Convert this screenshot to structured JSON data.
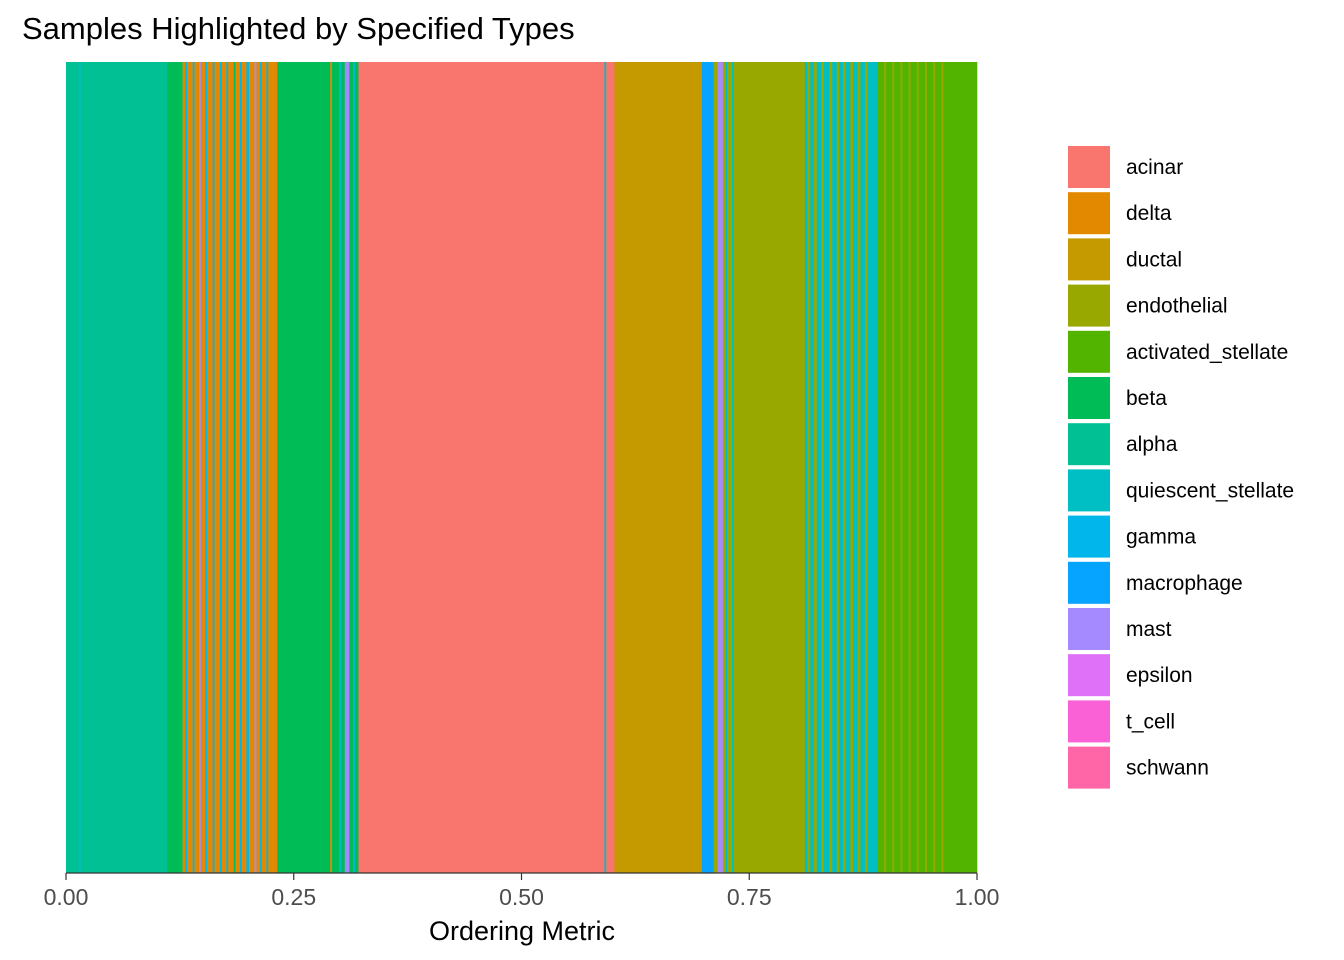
{
  "chart_data": {
    "type": "heatmap",
    "title": "Samples Highlighted by Specified Types",
    "xlabel": "Ordering Metric",
    "ylabel": "",
    "xlim": [
      0,
      1
    ],
    "x_ticks": [
      0,
      0.25,
      0.5,
      0.75,
      1
    ],
    "x_tick_labels": [
      "0.00",
      "0.25",
      "0.50",
      "0.75",
      "1.00"
    ],
    "legend_position": "right",
    "grid": false,
    "series": [
      {
        "name": "acinar",
        "color": "#F8766D"
      },
      {
        "name": "delta",
        "color": "#E38900"
      },
      {
        "name": "ductal",
        "color": "#C49A00"
      },
      {
        "name": "endothelial",
        "color": "#99A800"
      },
      {
        "name": "activated_stellate",
        "color": "#53B400"
      },
      {
        "name": "beta",
        "color": "#00BC56"
      },
      {
        "name": "alpha",
        "color": "#00C094"
      },
      {
        "name": "quiescent_stellate",
        "color": "#00BFC4"
      },
      {
        "name": "gamma",
        "color": "#00B6EB"
      },
      {
        "name": "macrophage",
        "color": "#06A4FF"
      },
      {
        "name": "mast",
        "color": "#A58AFF"
      },
      {
        "name": "epsilon",
        "color": "#DF70F8"
      },
      {
        "name": "t_cell",
        "color": "#FB61D7"
      },
      {
        "name": "schwann",
        "color": "#FF66A8"
      }
    ],
    "segments": [
      {
        "start": 0.0,
        "end": 0.014,
        "type": "alpha"
      },
      {
        "start": 0.014,
        "end": 0.016,
        "type": "quiescent_stellate"
      },
      {
        "start": 0.016,
        "end": 0.111,
        "type": "alpha"
      },
      {
        "start": 0.111,
        "end": 0.128,
        "type": "beta"
      },
      {
        "start": 0.128,
        "end": 0.131,
        "type": "delta"
      },
      {
        "start": 0.131,
        "end": 0.133,
        "type": "gamma"
      },
      {
        "start": 0.133,
        "end": 0.139,
        "type": "delta"
      },
      {
        "start": 0.139,
        "end": 0.141,
        "type": "gamma"
      },
      {
        "start": 0.141,
        "end": 0.146,
        "type": "delta"
      },
      {
        "start": 0.146,
        "end": 0.148,
        "type": "mast"
      },
      {
        "start": 0.148,
        "end": 0.153,
        "type": "delta"
      },
      {
        "start": 0.153,
        "end": 0.155,
        "type": "gamma"
      },
      {
        "start": 0.155,
        "end": 0.161,
        "type": "delta"
      },
      {
        "start": 0.161,
        "end": 0.163,
        "type": "gamma"
      },
      {
        "start": 0.163,
        "end": 0.169,
        "type": "delta"
      },
      {
        "start": 0.169,
        "end": 0.171,
        "type": "gamma"
      },
      {
        "start": 0.171,
        "end": 0.176,
        "type": "delta"
      },
      {
        "start": 0.176,
        "end": 0.178,
        "type": "gamma"
      },
      {
        "start": 0.178,
        "end": 0.184,
        "type": "delta"
      },
      {
        "start": 0.184,
        "end": 0.186,
        "type": "beta"
      },
      {
        "start": 0.186,
        "end": 0.191,
        "type": "delta"
      },
      {
        "start": 0.191,
        "end": 0.193,
        "type": "gamma"
      },
      {
        "start": 0.193,
        "end": 0.198,
        "type": "delta"
      },
      {
        "start": 0.198,
        "end": 0.201,
        "type": "gamma"
      },
      {
        "start": 0.201,
        "end": 0.207,
        "type": "delta"
      },
      {
        "start": 0.207,
        "end": 0.209,
        "type": "mast"
      },
      {
        "start": 0.209,
        "end": 0.213,
        "type": "delta"
      },
      {
        "start": 0.213,
        "end": 0.215,
        "type": "gamma"
      },
      {
        "start": 0.215,
        "end": 0.22,
        "type": "delta"
      },
      {
        "start": 0.22,
        "end": 0.222,
        "type": "gamma"
      },
      {
        "start": 0.222,
        "end": 0.232,
        "type": "delta"
      },
      {
        "start": 0.232,
        "end": 0.29,
        "type": "beta"
      },
      {
        "start": 0.29,
        "end": 0.292,
        "type": "delta"
      },
      {
        "start": 0.292,
        "end": 0.3,
        "type": "beta"
      },
      {
        "start": 0.3,
        "end": 0.302,
        "type": "quiescent_stellate"
      },
      {
        "start": 0.302,
        "end": 0.306,
        "type": "beta"
      },
      {
        "start": 0.306,
        "end": 0.311,
        "type": "mast"
      },
      {
        "start": 0.311,
        "end": 0.315,
        "type": "beta"
      },
      {
        "start": 0.315,
        "end": 0.317,
        "type": "gamma"
      },
      {
        "start": 0.317,
        "end": 0.321,
        "type": "beta"
      },
      {
        "start": 0.321,
        "end": 0.591,
        "type": "acinar"
      },
      {
        "start": 0.591,
        "end": 0.593,
        "type": "quiescent_stellate"
      },
      {
        "start": 0.593,
        "end": 0.602,
        "type": "acinar"
      },
      {
        "start": 0.602,
        "end": 0.698,
        "type": "ductal"
      },
      {
        "start": 0.698,
        "end": 0.711,
        "type": "macrophage"
      },
      {
        "start": 0.711,
        "end": 0.715,
        "type": "endothelial"
      },
      {
        "start": 0.715,
        "end": 0.721,
        "type": "mast"
      },
      {
        "start": 0.721,
        "end": 0.724,
        "type": "endothelial"
      },
      {
        "start": 0.724,
        "end": 0.726,
        "type": "quiescent_stellate"
      },
      {
        "start": 0.726,
        "end": 0.731,
        "type": "endothelial"
      },
      {
        "start": 0.731,
        "end": 0.733,
        "type": "quiescent_stellate"
      },
      {
        "start": 0.733,
        "end": 0.811,
        "type": "endothelial"
      },
      {
        "start": 0.811,
        "end": 0.814,
        "type": "quiescent_stellate"
      },
      {
        "start": 0.814,
        "end": 0.817,
        "type": "endothelial"
      },
      {
        "start": 0.817,
        "end": 0.821,
        "type": "quiescent_stellate"
      },
      {
        "start": 0.821,
        "end": 0.824,
        "type": "endothelial"
      },
      {
        "start": 0.824,
        "end": 0.829,
        "type": "quiescent_stellate"
      },
      {
        "start": 0.829,
        "end": 0.832,
        "type": "endothelial"
      },
      {
        "start": 0.832,
        "end": 0.838,
        "type": "quiescent_stellate"
      },
      {
        "start": 0.838,
        "end": 0.841,
        "type": "endothelial"
      },
      {
        "start": 0.841,
        "end": 0.846,
        "type": "quiescent_stellate"
      },
      {
        "start": 0.846,
        "end": 0.849,
        "type": "endothelial"
      },
      {
        "start": 0.849,
        "end": 0.853,
        "type": "quiescent_stellate"
      },
      {
        "start": 0.853,
        "end": 0.856,
        "type": "endothelial"
      },
      {
        "start": 0.856,
        "end": 0.861,
        "type": "quiescent_stellate"
      },
      {
        "start": 0.861,
        "end": 0.864,
        "type": "endothelial"
      },
      {
        "start": 0.864,
        "end": 0.869,
        "type": "quiescent_stellate"
      },
      {
        "start": 0.869,
        "end": 0.872,
        "type": "endothelial"
      },
      {
        "start": 0.872,
        "end": 0.877,
        "type": "quiescent_stellate"
      },
      {
        "start": 0.877,
        "end": 0.88,
        "type": "endothelial"
      },
      {
        "start": 0.88,
        "end": 0.891,
        "type": "quiescent_stellate"
      },
      {
        "start": 0.891,
        "end": 0.898,
        "type": "activated_stellate"
      },
      {
        "start": 0.898,
        "end": 0.9,
        "type": "endothelial"
      },
      {
        "start": 0.9,
        "end": 0.907,
        "type": "activated_stellate"
      },
      {
        "start": 0.907,
        "end": 0.909,
        "type": "endothelial"
      },
      {
        "start": 0.909,
        "end": 0.916,
        "type": "activated_stellate"
      },
      {
        "start": 0.916,
        "end": 0.918,
        "type": "endothelial"
      },
      {
        "start": 0.918,
        "end": 0.925,
        "type": "activated_stellate"
      },
      {
        "start": 0.925,
        "end": 0.927,
        "type": "endothelial"
      },
      {
        "start": 0.927,
        "end": 0.934,
        "type": "activated_stellate"
      },
      {
        "start": 0.934,
        "end": 0.936,
        "type": "endothelial"
      },
      {
        "start": 0.936,
        "end": 0.943,
        "type": "activated_stellate"
      },
      {
        "start": 0.943,
        "end": 0.945,
        "type": "endothelial"
      },
      {
        "start": 0.945,
        "end": 0.952,
        "type": "activated_stellate"
      },
      {
        "start": 0.952,
        "end": 0.954,
        "type": "endothelial"
      },
      {
        "start": 0.954,
        "end": 0.961,
        "type": "activated_stellate"
      },
      {
        "start": 0.961,
        "end": 0.963,
        "type": "endothelial"
      },
      {
        "start": 0.963,
        "end": 1.0,
        "type": "activated_stellate"
      }
    ]
  }
}
